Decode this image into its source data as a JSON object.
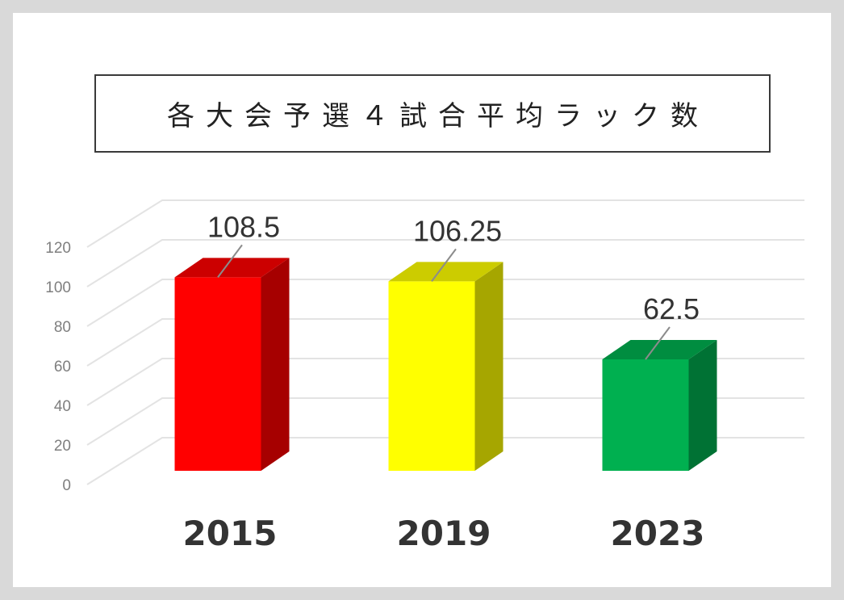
{
  "title": "各大会予選４試合平均ラック数",
  "chart_data": {
    "type": "bar",
    "title": "各大会予選４試合平均ラック数",
    "categories": [
      "2015",
      "2019",
      "2023"
    ],
    "values": [
      108.5,
      106.25,
      62.5
    ],
    "data_labels": [
      "108.5",
      "106.25",
      "62.5"
    ],
    "colors": [
      "#ff0000",
      "#ffff00",
      "#00b050"
    ],
    "ylim": [
      0,
      120
    ],
    "yticks": [
      "0",
      "20",
      "40",
      "60",
      "80",
      "100",
      "120"
    ],
    "grid": true,
    "legend": "none",
    "xlabel": "",
    "ylabel": "",
    "style": "3d-column"
  }
}
